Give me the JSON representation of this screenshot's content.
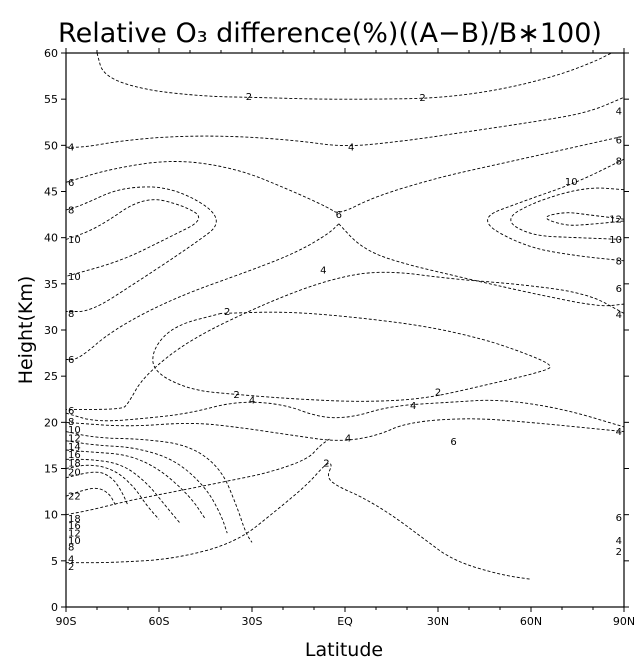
{
  "chart_data": {
    "type": "contour",
    "title": "Relative O₃ difference(%)((A−B)/B∗100)",
    "xlabel": "Latitude",
    "ylabel": "Height(Km)",
    "xlim": [
      -90,
      90
    ],
    "ylim": [
      0,
      60
    ],
    "x_ticks": [
      {
        "value": -90,
        "label": "90S"
      },
      {
        "value": -60,
        "label": "60S"
      },
      {
        "value": -30,
        "label": "30S"
      },
      {
        "value": 0,
        "label": "EQ"
      },
      {
        "value": 30,
        "label": "30N"
      },
      {
        "value": 60,
        "label": "60N"
      },
      {
        "value": 90,
        "label": "90N"
      }
    ],
    "y_ticks": [
      0,
      5,
      10,
      15,
      20,
      25,
      30,
      35,
      40,
      45,
      50,
      55,
      60
    ],
    "grid": false,
    "line_style": "dashed",
    "contours": [
      {
        "level": -2,
        "points": [
          [
            -80,
            60
          ],
          [
            -78,
            57.5
          ],
          [
            -65,
            56
          ],
          [
            -45,
            55.3
          ],
          [
            -30,
            55.2
          ],
          [
            -10,
            55
          ],
          [
            10,
            55
          ],
          [
            30,
            55.1
          ],
          [
            50,
            56
          ],
          [
            68,
            57.5
          ],
          [
            80,
            59
          ],
          [
            86,
            60
          ]
        ]
      },
      {
        "level": -4,
        "points": [
          [
            -90,
            49.8
          ],
          [
            -84,
            49.8
          ],
          [
            -72,
            50.5
          ],
          [
            -55,
            51
          ],
          [
            -35,
            51
          ],
          [
            -15,
            50.5
          ],
          [
            0,
            49.8
          ],
          [
            20,
            50.5
          ],
          [
            40,
            51.5
          ],
          [
            60,
            52.5
          ],
          [
            78,
            53.5
          ],
          [
            90,
            55.2
          ]
        ]
      },
      {
        "level": -6,
        "points": [
          [
            -90,
            46
          ],
          [
            -75,
            47.5
          ],
          [
            -55,
            48.5
          ],
          [
            -35,
            47.5
          ],
          [
            -18,
            45.2
          ],
          [
            -5,
            43.2
          ],
          [
            -2,
            42.5
          ],
          [
            10,
            44.5
          ],
          [
            30,
            46.5
          ],
          [
            50,
            48
          ],
          [
            70,
            49.5
          ],
          [
            90,
            51
          ]
        ]
      },
      {
        "level": -6,
        "points": [
          [
            -2,
            41.5
          ],
          [
            -5,
            40.5
          ],
          [
            -15,
            38.5
          ],
          [
            -30,
            36.5
          ],
          [
            -55,
            33.5
          ],
          [
            -75,
            30
          ],
          [
            -86,
            26.8
          ],
          [
            -90,
            26.8
          ]
        ]
      },
      {
        "level": -6,
        "points": [
          [
            -2,
            41.5
          ],
          [
            5,
            39
          ],
          [
            15,
            37.5
          ],
          [
            40,
            35.5
          ],
          [
            60,
            34
          ],
          [
            82,
            32.5
          ],
          [
            90,
            32.8
          ]
        ]
      },
      {
        "level": -8,
        "points": [
          [
            -90,
            43
          ],
          [
            -85,
            43.5
          ],
          [
            -72,
            45.5
          ],
          [
            -55,
            45.5
          ],
          [
            -38,
            42
          ],
          [
            -50,
            39
          ],
          [
            -68,
            35
          ],
          [
            -82,
            32
          ],
          [
            -90,
            32
          ]
        ]
      },
      {
        "level": -8,
        "points": [
          [
            90,
            48.5
          ],
          [
            75,
            46
          ],
          [
            58,
            44
          ],
          [
            42,
            42
          ],
          [
            58,
            39
          ],
          [
            75,
            38
          ],
          [
            90,
            37.5
          ]
        ]
      },
      {
        "level": -10,
        "points": [
          [
            -90,
            39.8
          ],
          [
            -80,
            41
          ],
          [
            -65,
            44.5
          ],
          [
            -52,
            43.5
          ],
          [
            -45,
            42
          ],
          [
            -57,
            40
          ],
          [
            -72,
            37.5
          ],
          [
            -90,
            35.8
          ]
        ]
      },
      {
        "level": -10,
        "points": [
          [
            90,
            45.2
          ],
          [
            78,
            45.5
          ],
          [
            62,
            44
          ],
          [
            51,
            42
          ],
          [
            60,
            40.2
          ],
          [
            75,
            40
          ],
          [
            90,
            39.8
          ]
        ]
      },
      {
        "level": -12,
        "points": [
          [
            90,
            42
          ],
          [
            78,
            42.5
          ],
          [
            71,
            42.8
          ],
          [
            63,
            42.2
          ],
          [
            71,
            41.3
          ],
          [
            78,
            41.4
          ],
          [
            90,
            41.8
          ]
        ]
      },
      {
        "level": -4,
        "points": [
          [
            90,
            31.8
          ],
          [
            78,
            34
          ],
          [
            55,
            35
          ],
          [
            35,
            35.5
          ],
          [
            12,
            36.5
          ],
          [
            -5,
            35.5
          ],
          [
            -25,
            33
          ],
          [
            -50,
            29
          ],
          [
            -65,
            25
          ],
          [
            -70,
            22
          ],
          [
            -72,
            21.4
          ],
          [
            -90,
            21.4
          ]
        ]
      },
      {
        "level": -2,
        "points": [
          [
            -40,
            31.8
          ],
          [
            -55,
            30.5
          ],
          [
            -62,
            28
          ],
          [
            -62,
            25.5
          ],
          [
            -50,
            23.5
          ],
          [
            -35,
            23
          ],
          [
            -15,
            22.5
          ],
          [
            5,
            22.2
          ],
          [
            25,
            22.5
          ],
          [
            45,
            24
          ],
          [
            65,
            25.6
          ],
          [
            67,
            26.2
          ],
          [
            58,
            27.5
          ],
          [
            45,
            29
          ],
          [
            25,
            30.5
          ],
          [
            0,
            31.5
          ],
          [
            -20,
            32
          ],
          [
            -40,
            31.8
          ]
        ]
      },
      {
        "level": -4,
        "points": [
          [
            -90,
            21
          ],
          [
            -80,
            20
          ],
          [
            -62,
            20.5
          ],
          [
            -50,
            21
          ],
          [
            -35,
            22.3
          ],
          [
            -20,
            22
          ],
          [
            -8,
            20.5
          ],
          [
            2,
            20.5
          ],
          [
            15,
            21.8
          ],
          [
            35,
            22.2
          ],
          [
            50,
            22.5
          ],
          [
            70,
            21.5
          ],
          [
            90,
            19.5
          ]
        ]
      },
      {
        "level": -6,
        "points": [
          [
            -90,
            20
          ],
          [
            -70,
            19.5
          ],
          [
            -50,
            20
          ],
          [
            -35,
            19.5
          ],
          [
            -15,
            18.5
          ],
          [
            -2,
            17.9
          ],
          [
            10,
            18.5
          ],
          [
            20,
            20
          ],
          [
            40,
            20.5
          ],
          [
            60,
            20
          ],
          [
            90,
            19
          ]
        ]
      },
      {
        "level": -8,
        "points": [
          [
            -90,
            19
          ],
          [
            -80,
            18.3
          ],
          [
            -65,
            18.2
          ],
          [
            -50,
            17.5
          ],
          [
            -40,
            15
          ],
          [
            -35,
            11
          ],
          [
            -32,
            8
          ],
          [
            -30,
            7
          ]
        ]
      },
      {
        "level": -10,
        "points": [
          [
            -90,
            18
          ],
          [
            -80,
            17.5
          ],
          [
            -68,
            17.3
          ],
          [
            -55,
            16
          ],
          [
            -45,
            13
          ],
          [
            -40,
            10
          ],
          [
            -38,
            8
          ]
        ]
      },
      {
        "level": -12,
        "points": [
          [
            -90,
            17
          ],
          [
            -82,
            16.8
          ],
          [
            -70,
            16.5
          ],
          [
            -60,
            15
          ],
          [
            -50,
            12
          ],
          [
            -45,
            9.5
          ]
        ]
      },
      {
        "level": -14,
        "points": [
          [
            -90,
            16
          ],
          [
            -82,
            16
          ],
          [
            -72,
            15.5
          ],
          [
            -64,
            13.5
          ],
          [
            -58,
            11
          ],
          [
            -53,
            9
          ]
        ]
      },
      {
        "level": -16,
        "points": [
          [
            -90,
            15
          ],
          [
            -82,
            15.5
          ],
          [
            -74,
            14.8
          ],
          [
            -68,
            13
          ],
          [
            -64,
            11
          ],
          [
            -60,
            9.5
          ]
        ]
      },
      {
        "level": -18,
        "points": [
          [
            -90,
            14
          ],
          [
            -80,
            14.8
          ],
          [
            -75,
            14
          ],
          [
            -72,
            12.5
          ],
          [
            -70,
            11
          ]
        ]
      },
      {
        "level": -22,
        "points": [
          [
            -90,
            12
          ],
          [
            -86,
            12.5
          ],
          [
            -80,
            13
          ],
          [
            -76,
            12.3
          ],
          [
            -74,
            11
          ]
        ]
      },
      {
        "level": -6,
        "points": [
          [
            -90,
            10
          ],
          [
            -82,
            10.5
          ],
          [
            -70,
            11.5
          ],
          [
            -55,
            12.5
          ],
          [
            -40,
            13.5
          ],
          [
            -25,
            14.5
          ],
          [
            -12,
            16
          ],
          [
            -8,
            17.5
          ],
          [
            -5,
            18.2
          ]
        ]
      },
      {
        "level": -2,
        "points": [
          [
            -90,
            4.8
          ],
          [
            -75,
            4.8
          ],
          [
            -55,
            5.2
          ],
          [
            -35,
            7
          ],
          [
            -22,
            10.5
          ],
          [
            -12,
            13.3
          ],
          [
            -6,
            15.6
          ],
          [
            -4,
            15.5
          ],
          [
            -6,
            14
          ],
          [
            -2,
            13
          ],
          [
            5,
            12
          ],
          [
            15,
            10
          ],
          [
            25,
            7.5
          ],
          [
            35,
            5
          ],
          [
            50,
            3.5
          ],
          [
            60,
            3
          ]
        ]
      }
    ],
    "contour_labels": [
      {
        "text": "2",
        "x": -31,
        "y": 55.3
      },
      {
        "text": "2",
        "x": 25,
        "y": 55.2
      },
      {
        "text": "4",
        "x": -90,
        "y": 49.8
      },
      {
        "text": "4",
        "x": 2,
        "y": 49.8
      },
      {
        "text": "6",
        "x": -90,
        "y": 46
      },
      {
        "text": "8",
        "x": -90,
        "y": 43
      },
      {
        "text": "10",
        "x": -90,
        "y": 39.8
      },
      {
        "text": "10",
        "x": -90,
        "y": 35.8
      },
      {
        "text": "8",
        "x": -90,
        "y": 31.8
      },
      {
        "text": "6",
        "x": -90,
        "y": 26.8
      },
      {
        "text": "6",
        "x": -2,
        "y": 42.5
      },
      {
        "text": "4",
        "x": -7,
        "y": 36.5
      },
      {
        "text": "2",
        "x": -38,
        "y": 32
      },
      {
        "text": "2",
        "x": -35,
        "y": 23
      },
      {
        "text": "4",
        "x": -30,
        "y": 22.4
      },
      {
        "text": "2",
        "x": 30,
        "y": 23.3
      },
      {
        "text": "4",
        "x": 22,
        "y": 21.8
      },
      {
        "text": "4",
        "x": 1,
        "y": 18.3
      },
      {
        "text": "2",
        "x": -6,
        "y": 15.6
      },
      {
        "text": "6",
        "x": 35,
        "y": 17.9
      },
      {
        "text": "6",
        "x": -90,
        "y": 21.3
      },
      {
        "text": "8",
        "x": -90,
        "y": 20.1
      },
      {
        "text": "10",
        "x": -90,
        "y": 19.2
      },
      {
        "text": "12",
        "x": -90,
        "y": 18.3
      },
      {
        "text": "14",
        "x": -90,
        "y": 17.4
      },
      {
        "text": "16",
        "x": -90,
        "y": 16.5
      },
      {
        "text": "18",
        "x": -90,
        "y": 15.6
      },
      {
        "text": "20",
        "x": -90,
        "y": 14.6
      },
      {
        "text": "22",
        "x": -90,
        "y": 12
      },
      {
        "text": "18",
        "x": -90,
        "y": 9.6
      },
      {
        "text": "16",
        "x": -90,
        "y": 8.8
      },
      {
        "text": "12",
        "x": -90,
        "y": 8
      },
      {
        "text": "10",
        "x": -90,
        "y": 7.2
      },
      {
        "text": "8",
        "x": -90,
        "y": 6.5
      },
      {
        "text": "4",
        "x": -90,
        "y": 5.2
      },
      {
        "text": "2",
        "x": -90,
        "y": 4.4
      },
      {
        "text": "4",
        "x": 90,
        "y": 53.7
      },
      {
        "text": "6",
        "x": 90,
        "y": 50.6
      },
      {
        "text": "8",
        "x": 90,
        "y": 48.3
      },
      {
        "text": "10",
        "x": 73,
        "y": 46.1
      },
      {
        "text": "12",
        "x": 90,
        "y": 42
      },
      {
        "text": "10",
        "x": 90,
        "y": 39.8
      },
      {
        "text": "8",
        "x": 90,
        "y": 37.5
      },
      {
        "text": "6",
        "x": 90,
        "y": 34.5
      },
      {
        "text": "4",
        "x": 90,
        "y": 31.7
      },
      {
        "text": "4",
        "x": 90,
        "y": 19
      },
      {
        "text": "6",
        "x": 90,
        "y": 9.7
      },
      {
        "text": "4",
        "x": 90,
        "y": 7.2
      },
      {
        "text": "2",
        "x": 90,
        "y": 6
      }
    ]
  }
}
